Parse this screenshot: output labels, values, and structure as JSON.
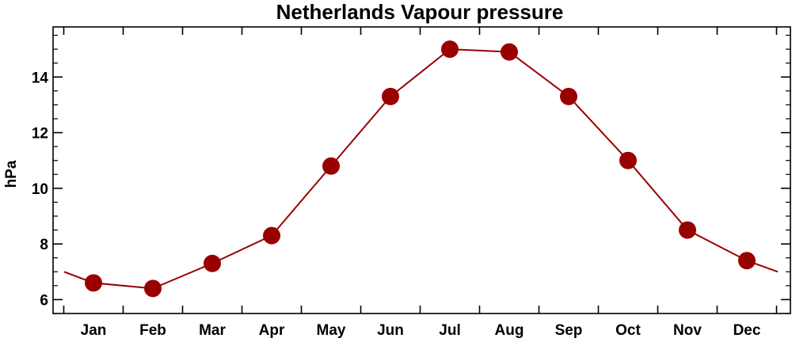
{
  "chart_data": {
    "type": "line",
    "title": "Netherlands Vapour pressure",
    "xlabel": "",
    "ylabel": "hPa",
    "categories": [
      "Jan",
      "Feb",
      "Mar",
      "Apr",
      "May",
      "Jun",
      "Jul",
      "Aug",
      "Sep",
      "Oct",
      "Nov",
      "Dec"
    ],
    "series": [
      {
        "values": [
          6.6,
          6.4,
          7.3,
          8.3,
          10.8,
          13.3,
          15.0,
          14.9,
          13.3,
          11.0,
          8.5,
          7.4
        ]
      }
    ],
    "yticks": [
      6,
      8,
      10,
      12,
      14
    ],
    "ylim": [
      5.5,
      15.8
    ],
    "grid": false,
    "legend": "none",
    "colors": {
      "line": "#990000",
      "marker": "#990000",
      "axes": "#000000"
    }
  }
}
